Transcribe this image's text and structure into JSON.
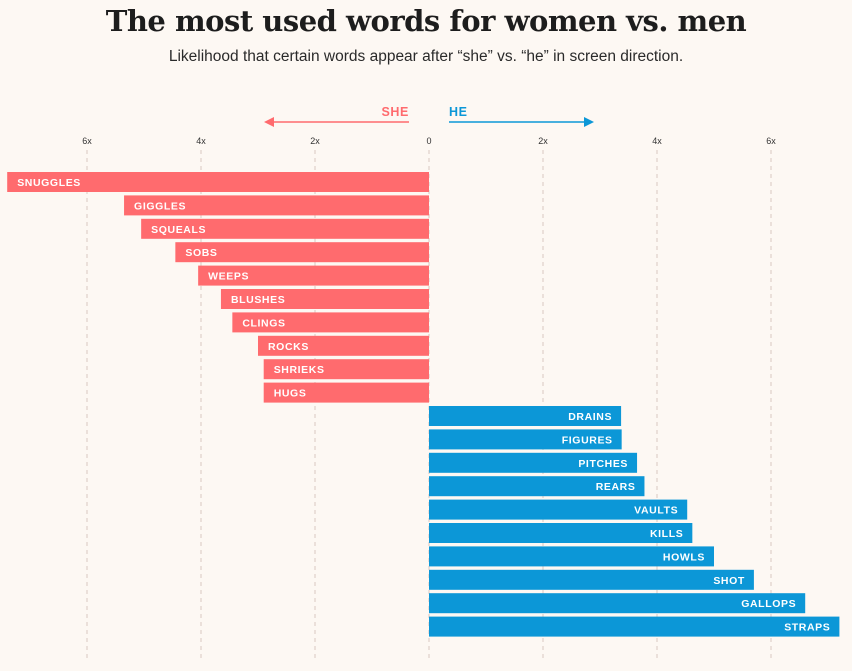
{
  "title": "The most used words for women vs. men",
  "subtitle": "Likelihood that certain words appear after “she” vs. “he” in screen direction.",
  "colors": {
    "she": "#ff6b6e",
    "he": "#0c97d7",
    "grid": "#d9c8c0",
    "background": "#fdf8f3"
  },
  "direction": {
    "she_label": "SHE",
    "he_label": "HE"
  },
  "chart_data": {
    "type": "bar",
    "orientation": "horizontal-diverging",
    "title": "The most used words for women vs. men",
    "subtitle": "Likelihood that certain words appear after “she” vs. “he” in screen direction.",
    "x_ticks": [
      {
        "value": -6,
        "label": "6x"
      },
      {
        "value": -4,
        "label": "4x"
      },
      {
        "value": -2,
        "label": "2x"
      },
      {
        "value": 0,
        "label": "0"
      },
      {
        "value": 2,
        "label": "2x"
      },
      {
        "value": 4,
        "label": "4x"
      },
      {
        "value": 6,
        "label": "6x"
      }
    ],
    "xlim": [
      -7.5,
      7.2
    ],
    "grid": true,
    "series": [
      {
        "name": "SHE",
        "color": "#ff6b6e",
        "categories": [
          "SNUGGLES",
          "GIGGLES",
          "SQUEALS",
          "SOBS",
          "WEEPS",
          "BLUSHES",
          "CLINGS",
          "ROCKS",
          "SHRIEKS",
          "HUGS"
        ],
        "values": [
          7.4,
          5.35,
          5.05,
          4.45,
          4.05,
          3.65,
          3.45,
          3.0,
          2.9,
          2.9
        ]
      },
      {
        "name": "HE",
        "color": "#0c97d7",
        "categories": [
          "DRAINS",
          "FIGURES",
          "PITCHES",
          "REARS",
          "VAULTS",
          "KILLS",
          "HOWLS",
          "SHOT",
          "GALLOPS",
          "STRAPS"
        ],
        "values": [
          3.37,
          3.38,
          3.65,
          3.78,
          4.53,
          4.62,
          5.0,
          5.7,
          6.6,
          7.2
        ]
      }
    ]
  }
}
